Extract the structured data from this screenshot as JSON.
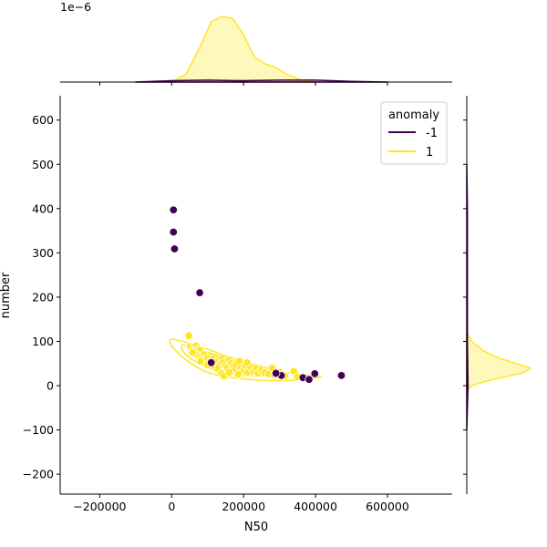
{
  "chart_data": {
    "type": "scatter",
    "title": "",
    "xlabel": "N50",
    "ylabel": "number",
    "xlim": [
      -310000,
      780000
    ],
    "ylim": [
      -245,
      655
    ],
    "xticks": [
      -200000,
      0,
      200000,
      400000,
      600000
    ],
    "xtick_labels": [
      "−200000",
      "0",
      "200000",
      "400000",
      "600000"
    ],
    "yticks": [
      -200,
      -100,
      0,
      100,
      200,
      300,
      400,
      500,
      600
    ],
    "ytick_labels": [
      "−200",
      "−100",
      "0",
      "100",
      "200",
      "300",
      "400",
      "500",
      "600"
    ],
    "top_marginal_offset_label": "1e−6",
    "legend": {
      "title": "anomaly",
      "placement": "top-right",
      "entries": [
        {
          "label": "-1",
          "color": "#440154"
        },
        {
          "label": "1",
          "color": "#fde725"
        }
      ]
    },
    "series": [
      {
        "name": "-1",
        "color": "#440154",
        "points": [
          [
            5000,
            397
          ],
          [
            5000,
            347
          ],
          [
            8000,
            309
          ],
          [
            78000,
            210
          ],
          [
            110000,
            52
          ],
          [
            305000,
            23
          ],
          [
            365000,
            18
          ],
          [
            382000,
            14
          ],
          [
            398000,
            27
          ],
          [
            472000,
            23
          ],
          [
            290000,
            28
          ]
        ]
      },
      {
        "name": "1",
        "color": "#fde725",
        "points": [
          [
            48000,
            113
          ],
          [
            52000,
            88
          ],
          [
            60000,
            85
          ],
          [
            68000,
            90
          ],
          [
            72000,
            82
          ],
          [
            78000,
            80
          ],
          [
            65000,
            72
          ],
          [
            75000,
            68
          ],
          [
            82000,
            66
          ],
          [
            90000,
            70
          ],
          [
            58000,
            75
          ],
          [
            86000,
            60
          ],
          [
            95000,
            58
          ],
          [
            100000,
            62
          ],
          [
            108000,
            55
          ],
          [
            115000,
            60
          ],
          [
            120000,
            50
          ],
          [
            128000,
            56
          ],
          [
            135000,
            48
          ],
          [
            140000,
            62
          ],
          [
            145000,
            53
          ],
          [
            150000,
            45
          ],
          [
            155000,
            40
          ],
          [
            160000,
            58
          ],
          [
            165000,
            50
          ],
          [
            170000,
            44
          ],
          [
            175000,
            38
          ],
          [
            180000,
            47
          ],
          [
            188000,
            55
          ],
          [
            192000,
            40
          ],
          [
            200000,
            35
          ],
          [
            205000,
            45
          ],
          [
            212000,
            30
          ],
          [
            220000,
            42
          ],
          [
            228000,
            32
          ],
          [
            235000,
            38
          ],
          [
            240000,
            28
          ],
          [
            250000,
            35
          ],
          [
            258000,
            30
          ],
          [
            270000,
            26
          ],
          [
            280000,
            40
          ],
          [
            285000,
            24
          ],
          [
            300000,
            30
          ],
          [
            315000,
            22
          ],
          [
            340000,
            32
          ],
          [
            350000,
            20
          ],
          [
            138000,
            28
          ],
          [
            125000,
            40
          ],
          [
            112000,
            45
          ],
          [
            80000,
            55
          ],
          [
            145000,
            22
          ],
          [
            160000,
            30
          ],
          [
            185000,
            25
          ],
          [
            210000,
            52
          ],
          [
            100000,
            47
          ]
        ]
      }
    ],
    "marginal_top": {
      "series": [
        {
          "name": "1",
          "x": [
            0,
            40000,
            80000,
            110000,
            140000,
            170000,
            200000,
            230000,
            260000,
            290000,
            320000,
            360000,
            400000
          ],
          "density": [
            0.0,
            0.12,
            0.55,
            0.92,
            1.0,
            0.97,
            0.72,
            0.38,
            0.28,
            0.22,
            0.12,
            0.03,
            0.0
          ]
        },
        {
          "name": "-1",
          "x": [
            -100000,
            0,
            100000,
            200000,
            300000,
            400000,
            500000,
            600000
          ],
          "density": [
            0.0,
            0.02,
            0.03,
            0.02,
            0.03,
            0.03,
            0.01,
            0.0
          ]
        }
      ]
    },
    "marginal_right": {
      "series": [
        {
          "name": "1",
          "y": [
            -10,
            0,
            10,
            20,
            30,
            40,
            50,
            60,
            70,
            80,
            100,
            120
          ],
          "density": [
            0.0,
            0.08,
            0.3,
            0.6,
            0.9,
            1.0,
            0.78,
            0.55,
            0.38,
            0.25,
            0.08,
            0.0
          ]
        },
        {
          "name": "-1",
          "y": [
            -100,
            0,
            100,
            200,
            300,
            400,
            500
          ],
          "density": [
            0.0,
            0.02,
            0.01,
            0.01,
            0.01,
            0.01,
            0.0
          ]
        }
      ]
    }
  }
}
